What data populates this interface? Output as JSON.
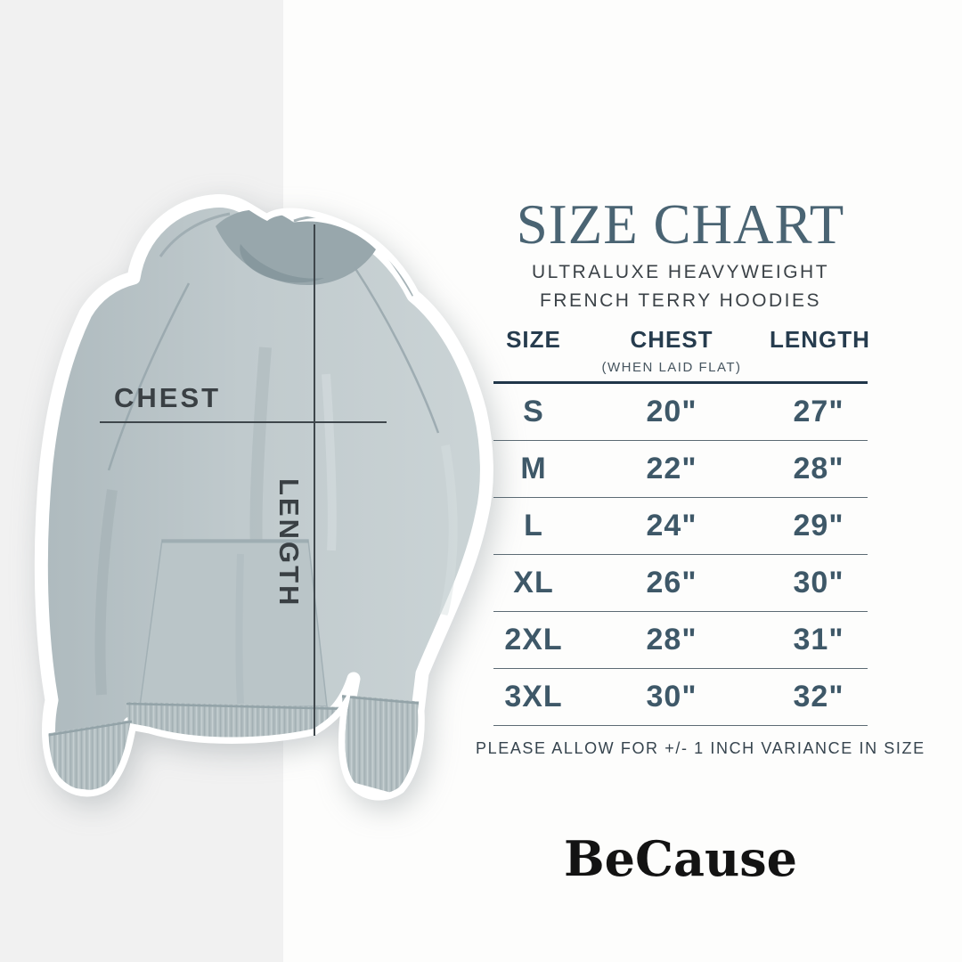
{
  "page": {
    "background_color": "#fdfdfc",
    "left_band_color": "#f1f1f1"
  },
  "product": {
    "description": "pale sage-blue french terry pullover hoodie with white sticker outline",
    "fabric_color": "#bfc9cc",
    "annotations": {
      "chest_label": "CHEST",
      "length_label": "LENGTH"
    }
  },
  "size_chart": {
    "title": "SIZE CHART",
    "subtitle_line1": "ULTRALUXE HEAVYWEIGHT",
    "subtitle_line2": "FRENCH TERRY HOODIES",
    "accent_color": "#4a6473",
    "columns": [
      {
        "label": "SIZE",
        "sublabel": ""
      },
      {
        "label": "CHEST",
        "sublabel": "(WHEN LAID FLAT)"
      },
      {
        "label": "LENGTH",
        "sublabel": ""
      }
    ],
    "rows": [
      {
        "size": "S",
        "chest": "20\"",
        "length": "27\""
      },
      {
        "size": "M",
        "chest": "22\"",
        "length": "28\""
      },
      {
        "size": "L",
        "chest": "24\"",
        "length": "29\""
      },
      {
        "size": "XL",
        "chest": "26\"",
        "length": "30\""
      },
      {
        "size": "2XL",
        "chest": "28\"",
        "length": "31\""
      },
      {
        "size": "3XL",
        "chest": "30\"",
        "length": "32\""
      }
    ],
    "note": "PLEASE ALLOW FOR +/- 1 INCH VARIANCE IN SIZE"
  },
  "brand": {
    "logo_text": "BeCause"
  },
  "chart_data": {
    "type": "table",
    "title": "SIZE CHART",
    "columns": [
      "SIZE",
      "CHEST (WHEN LAID FLAT)",
      "LENGTH"
    ],
    "rows": [
      [
        "S",
        "20\"",
        "27\""
      ],
      [
        "M",
        "22\"",
        "28\""
      ],
      [
        "L",
        "24\"",
        "29\""
      ],
      [
        "XL",
        "26\"",
        "30\""
      ],
      [
        "2XL",
        "28\"",
        "31\""
      ],
      [
        "3XL",
        "30\"",
        "32\""
      ]
    ],
    "note": "PLEASE ALLOW FOR +/- 1 INCH VARIANCE IN SIZE"
  }
}
